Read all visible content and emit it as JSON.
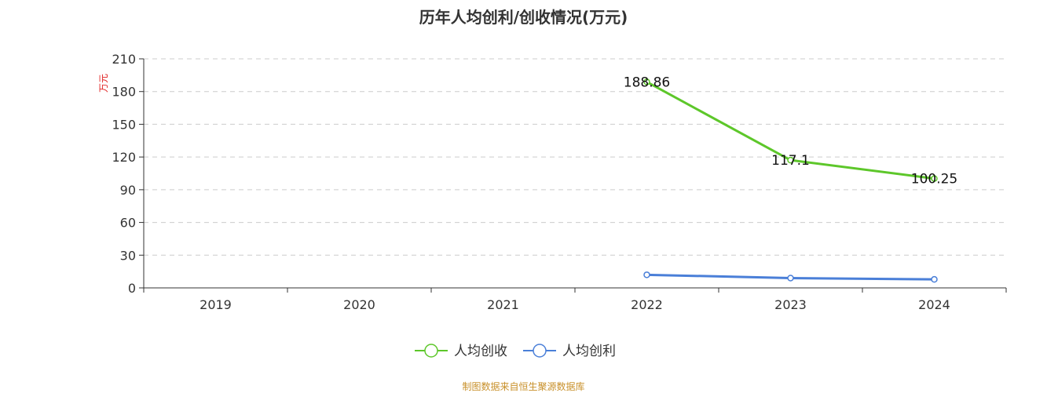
{
  "chart_data": {
    "type": "line",
    "title": "历年人均创利/创收情况(万元)",
    "ylabel": "万元",
    "categories": [
      "2019",
      "2020",
      "2021",
      "2022",
      "2023",
      "2024"
    ],
    "ylim": [
      0,
      210
    ],
    "yticks": [
      0,
      30,
      60,
      90,
      120,
      150,
      180,
      210
    ],
    "grid": true,
    "legend_position": "bottom",
    "series": [
      {
        "name": "人均创收",
        "color": "#5dc72a",
        "values": [
          null,
          null,
          null,
          188.86,
          117.1,
          100.25
        ],
        "labels": [
          "",
          "",
          "",
          "188.86",
          "117.1",
          "100.25"
        ]
      },
      {
        "name": "人均创利",
        "color": "#4a7fd8",
        "values": [
          null,
          null,
          null,
          12.0,
          9.0,
          7.8
        ],
        "labels": [
          "",
          "",
          "",
          "",
          "",
          ""
        ]
      }
    ]
  },
  "source_text": "制图数据来自恒生聚源数据库"
}
